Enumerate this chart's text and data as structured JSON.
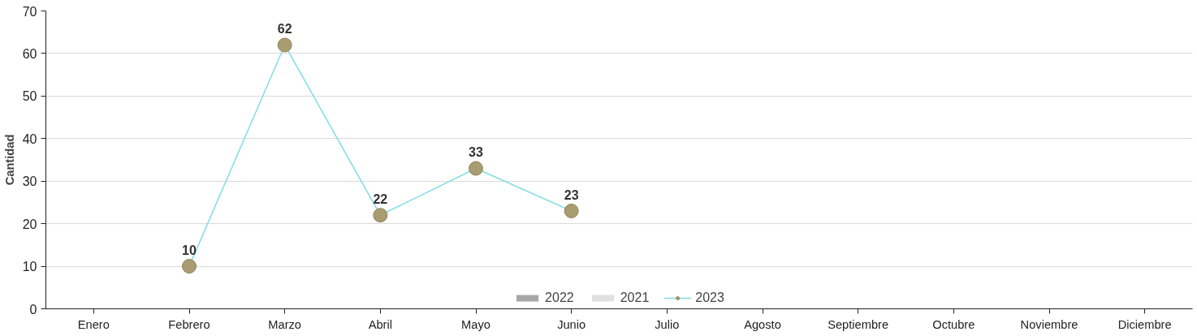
{
  "chart_data": {
    "type": "line",
    "ylabel": "Cantidad",
    "categories": [
      "Enero",
      "Febrero",
      "Marzo",
      "Abril",
      "Mayo",
      "Junio",
      "Julio",
      "Agosto",
      "Septiembre",
      "Octubre",
      "Noviembre",
      "Diciembre"
    ],
    "series": [
      {
        "name": "2022",
        "type": "bar",
        "color": "#a6a6a6",
        "values": [
          null,
          null,
          null,
          null,
          null,
          null,
          null,
          null,
          null,
          null,
          null,
          null
        ]
      },
      {
        "name": "2021",
        "type": "bar",
        "color": "#e0e0e0",
        "values": [
          null,
          null,
          null,
          null,
          null,
          null,
          null,
          null,
          null,
          null,
          null,
          null
        ]
      },
      {
        "name": "2023",
        "color": "#7fdde3",
        "values": [
          null,
          10,
          62,
          22,
          33,
          23,
          null,
          null,
          null,
          null,
          null,
          null
        ]
      }
    ],
    "ylim": [
      0,
      70
    ],
    "yticks": [
      0,
      10,
      20,
      30,
      40,
      50,
      60,
      70
    ],
    "grid": "y",
    "legend": "bottom",
    "marker": "circle",
    "data_labels": true
  }
}
